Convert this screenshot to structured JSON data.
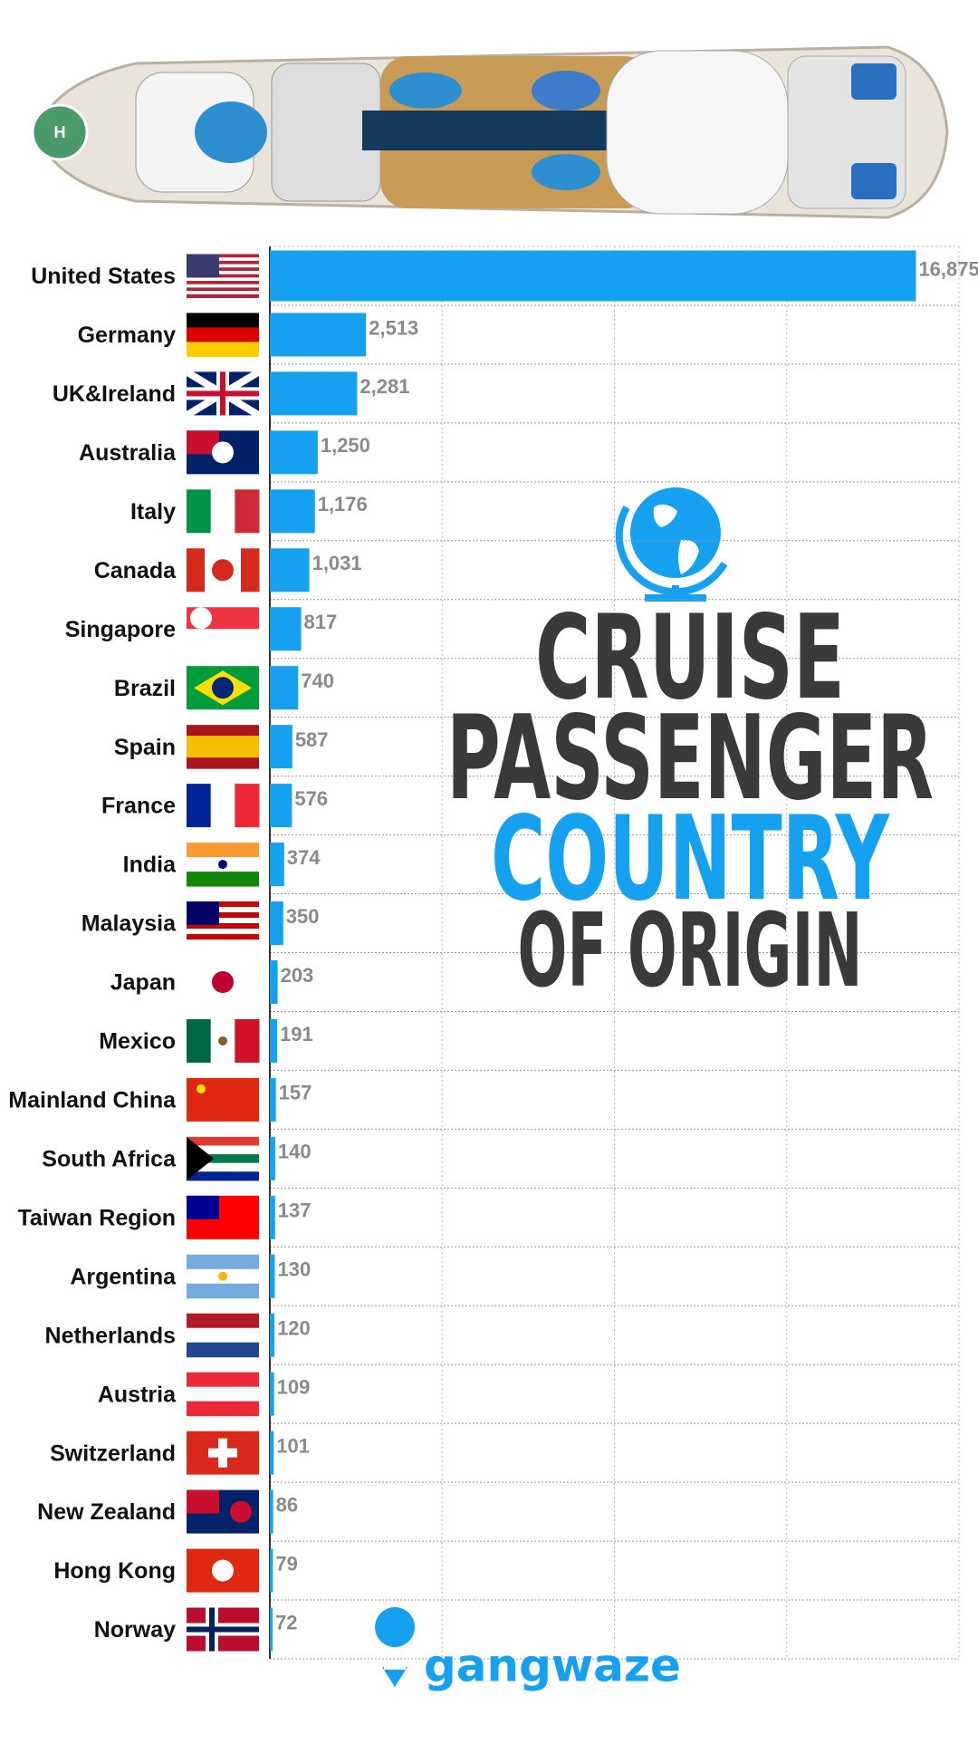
{
  "chart_data": {
    "type": "barh",
    "title_lines": [
      "CRUISE",
      "PASSENGER",
      "COUNTRY",
      "OF ORIGIN"
    ],
    "brand": "gangwaze",
    "categories": [
      "United States",
      "Germany",
      "UK&Ireland",
      "Australia",
      "Italy",
      "Canada",
      "Singapore",
      "Brazil",
      "Spain",
      "France",
      "India",
      "Malaysia",
      "Japan",
      "Mexico",
      "Mainland China",
      "South Africa",
      "Taiwan Region",
      "Argentina",
      "Netherlands",
      "Austria",
      "Switzerland",
      "New Zealand",
      "Hong Kong",
      "Norway"
    ],
    "values": [
      16875,
      2513,
      2281,
      1250,
      1176,
      1031,
      817,
      740,
      587,
      576,
      374,
      350,
      203,
      191,
      157,
      140,
      137,
      130,
      120,
      109,
      101,
      86,
      79,
      72
    ],
    "value_labels": [
      "16,875",
      "2,513",
      "2,281",
      "1,250",
      "1,176",
      "1,031",
      "817",
      "740",
      "587",
      "576",
      "374",
      "350",
      "203",
      "191",
      "157",
      "140",
      "137",
      "130",
      "120",
      "109",
      "101",
      "86",
      "79",
      "72"
    ],
    "color": "#16a0f0",
    "xlim": [
      0,
      18000
    ]
  }
}
